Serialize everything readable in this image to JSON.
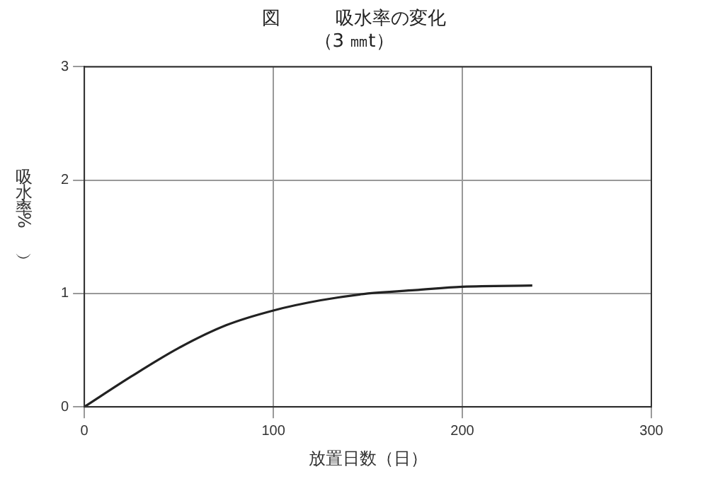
{
  "chart_data": {
    "type": "line",
    "title": "図　　　吸水率の変化",
    "subtitle": "（3 ㎜t）",
    "xlabel": "放置日数（日）",
    "ylabel": "吸水率（%）",
    "x": [
      0,
      25,
      50,
      75,
      100,
      125,
      150,
      175,
      200,
      237
    ],
    "series": [
      {
        "color": "#222222",
        "values": [
          0,
          0.27,
          0.52,
          0.72,
          0.85,
          0.94,
          1.0,
          1.03,
          1.06,
          1.07
        ]
      }
    ],
    "xlim": [
      0,
      300
    ],
    "xticks": [
      0,
      100,
      200,
      300
    ],
    "ylim": [
      0,
      3
    ],
    "yticks": [
      0,
      1,
      2,
      3
    ],
    "grid": true,
    "legend": false,
    "marker": "none",
    "line_style": "solid"
  }
}
